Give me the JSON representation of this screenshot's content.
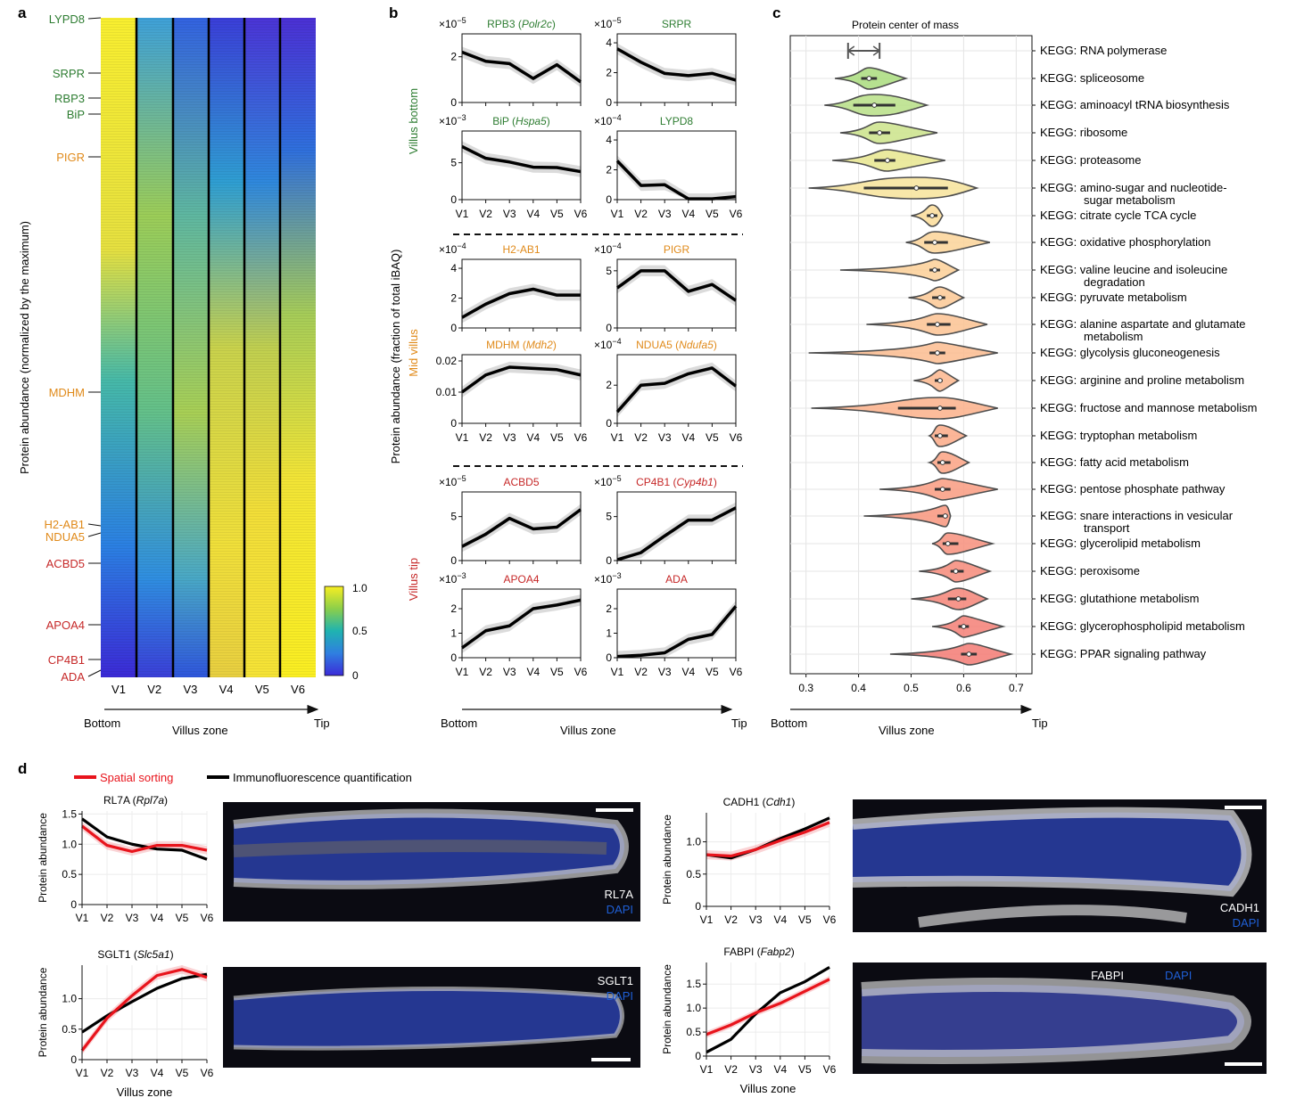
{
  "panel_labels": {
    "a": "a",
    "b": "b",
    "c": "c",
    "d": "d"
  },
  "colors": {
    "green": "#2e7d32",
    "orange": "#e08a1a",
    "red": "#c62828",
    "spatial_sorting": "#e8141c",
    "immunofluorescence": "#000000",
    "dapi_blue": "#1f5fd6"
  },
  "panel_a": {
    "ylabel": "Protein abundance (normalized by the maximum)",
    "columns": [
      "V1",
      "V2",
      "V3",
      "V4",
      "V5",
      "V6"
    ],
    "colorbar_ticks": [
      "1.0",
      "0.5",
      "0"
    ],
    "protein_labels": [
      {
        "name": "LYPD8",
        "color": "green"
      },
      {
        "name": "SRPR",
        "color": "green"
      },
      {
        "name": "RBP3",
        "color": "green"
      },
      {
        "name": "BiP",
        "color": "green"
      },
      {
        "name": "PIGR",
        "color": "orange"
      },
      {
        "name": "MDHM",
        "color": "orange"
      },
      {
        "name": "H2-AB1",
        "color": "orange"
      },
      {
        "name": "NDUA5",
        "color": "orange"
      },
      {
        "name": "ACBD5",
        "color": "red"
      },
      {
        "name": "APOA4",
        "color": "red"
      },
      {
        "name": "CP4B1",
        "color": "red"
      },
      {
        "name": "ADA",
        "color": "red"
      }
    ],
    "axis": {
      "left": "Bottom",
      "middle": "Villus zone",
      "right": "Tip"
    }
  },
  "panel_b": {
    "ylabel": "Protein abundance (fraction of total iBAQ)",
    "groups": [
      {
        "name": "Villus bottom",
        "color": "green"
      },
      {
        "name": "Mid villus",
        "color": "orange"
      },
      {
        "name": "Villus tip",
        "color": "red"
      }
    ],
    "xticks": [
      "V1",
      "V2",
      "V3",
      "V4",
      "V5",
      "V6"
    ],
    "axis": {
      "left": "Bottom",
      "middle": "Villus zone",
      "right": "Tip"
    }
  },
  "panel_c": {
    "title": "Protein center of mass",
    "xticks": [
      "0.3",
      "0.4",
      "0.5",
      "0.6",
      "0.7"
    ],
    "axis": {
      "left": "Bottom",
      "middle": "Villus zone",
      "right": "Tip"
    }
  },
  "panel_d": {
    "legend": [
      "Spatial sorting",
      "Immunofluorescence quantification"
    ],
    "xticks": [
      "V1",
      "V2",
      "V3",
      "V4",
      "V5",
      "V6"
    ],
    "ylabel": "Protein abundance",
    "xlabel": "Villus zone",
    "micrograph_labels": [
      {
        "protein": "RL7A",
        "stain": "DAPI"
      },
      {
        "protein": "CADH1",
        "stain": "DAPI"
      },
      {
        "protein": "SGLT1",
        "stain": "DAPI"
      },
      {
        "protein": "FABPI",
        "stain": "DAPI"
      }
    ]
  },
  "chart_data": [
    {
      "id": "b1",
      "type": "line",
      "title": "RPB3 (Polr2c)",
      "title_main": "RPB3 (",
      "title_italic": "Polr2c",
      "title_end": ")",
      "title_color": "green",
      "multiplier": "×10",
      "exponent": "−5",
      "x": [
        "V1",
        "V2",
        "V3",
        "V4",
        "V5",
        "V6"
      ],
      "y": [
        2.2,
        1.8,
        1.7,
        1.05,
        1.65,
        0.9
      ],
      "yticks": [
        0,
        2
      ],
      "ylim": [
        0,
        3
      ]
    },
    {
      "id": "b2",
      "type": "line",
      "title": "SRPR",
      "title_main": "SRPR",
      "title_italic": "",
      "title_end": "",
      "title_color": "green",
      "multiplier": "×10",
      "exponent": "−5",
      "x": [
        "V1",
        "V2",
        "V3",
        "V4",
        "V5",
        "V6"
      ],
      "y": [
        3.6,
        2.7,
        1.95,
        1.8,
        1.95,
        1.5
      ],
      "yticks": [
        0,
        2,
        4
      ],
      "ylim": [
        0,
        4.6
      ]
    },
    {
      "id": "b3",
      "type": "line",
      "title": "BiP (Hspa5)",
      "title_main": "BiP (",
      "title_italic": "Hspa5",
      "title_end": ")",
      "title_color": "green",
      "multiplier": "×10",
      "exponent": "−3",
      "x": [
        "V1",
        "V2",
        "V3",
        "V4",
        "V5",
        "V6"
      ],
      "y": [
        7.2,
        5.6,
        5.1,
        4.4,
        4.35,
        3.8
      ],
      "yticks": [
        0,
        5
      ],
      "ylim": [
        0,
        9.3
      ]
    },
    {
      "id": "b4",
      "type": "line",
      "title": "LYPD8",
      "title_main": "LYPD8",
      "title_italic": "",
      "title_end": "",
      "title_color": "green",
      "multiplier": "×10",
      "exponent": "−4",
      "x": [
        "V1",
        "V2",
        "V3",
        "V4",
        "V5",
        "V6"
      ],
      "y": [
        2.6,
        0.95,
        1.0,
        0.05,
        0.05,
        0.2
      ],
      "yticks": [
        0,
        2,
        4
      ],
      "ylim": [
        0,
        4.6
      ]
    },
    {
      "id": "b5",
      "type": "line",
      "title": "H2-AB1",
      "title_main": "H2-AB1",
      "title_italic": "",
      "title_end": "",
      "title_color": "orange",
      "multiplier": "×10",
      "exponent": "−4",
      "x": [
        "V1",
        "V2",
        "V3",
        "V4",
        "V5",
        "V6"
      ],
      "y": [
        0.7,
        1.6,
        2.3,
        2.6,
        2.2,
        2.2
      ],
      "yticks": [
        0,
        2,
        4
      ],
      "ylim": [
        0,
        4.6
      ]
    },
    {
      "id": "b6",
      "type": "line",
      "title": "PIGR",
      "title_main": "PIGR",
      "title_italic": "",
      "title_end": "",
      "title_color": "orange",
      "multiplier": "×10",
      "exponent": "−4",
      "x": [
        "V1",
        "V2",
        "V3",
        "V4",
        "V5",
        "V6"
      ],
      "y": [
        3.5,
        5.0,
        5.0,
        3.2,
        3.8,
        2.4
      ],
      "yticks": [
        0,
        5
      ],
      "ylim": [
        0,
        6.0
      ]
    },
    {
      "id": "b7",
      "type": "line",
      "title": "MDHM (Mdh2)",
      "title_main": "MDHM (",
      "title_italic": "Mdh2",
      "title_end": ")",
      "title_color": "orange",
      "multiplier": "",
      "exponent": "",
      "x": [
        "V1",
        "V2",
        "V3",
        "V4",
        "V5",
        "V6"
      ],
      "y": [
        0.01,
        0.0155,
        0.018,
        0.0176,
        0.0172,
        0.0155
      ],
      "yticks": [
        0,
        0.01,
        0.02
      ],
      "ytick_labels": [
        "0",
        "0.01",
        "0.02"
      ],
      "ylim": [
        0,
        0.022
      ]
    },
    {
      "id": "b8",
      "type": "line",
      "title": "NDUA5 (Ndufa5)",
      "title_main": "NDUA5 (",
      "title_italic": "Ndufa5",
      "title_end": ")",
      "title_color": "orange",
      "multiplier": "×10",
      "exponent": "−4",
      "x": [
        "V1",
        "V2",
        "V3",
        "V4",
        "V5",
        "V6"
      ],
      "y": [
        0.6,
        2.0,
        2.1,
        2.6,
        2.9,
        1.95
      ],
      "yticks": [
        0,
        2
      ],
      "ylim": [
        0,
        3.6
      ]
    },
    {
      "id": "b9",
      "type": "line",
      "title": "ACBD5",
      "title_main": "ACBD5",
      "title_italic": "",
      "title_end": "",
      "title_color": "red",
      "multiplier": "×10",
      "exponent": "−5",
      "x": [
        "V1",
        "V2",
        "V3",
        "V4",
        "V5",
        "V6"
      ],
      "y": [
        1.6,
        3.0,
        4.8,
        3.6,
        3.8,
        5.8
      ],
      "yticks": [
        0,
        5
      ],
      "ylim": [
        0,
        7.8
      ]
    },
    {
      "id": "b10",
      "type": "line",
      "title": "CP4B1 (Cyp4b1)",
      "title_main": "CP4B1 (",
      "title_italic": "Cyp4b1",
      "title_end": ")",
      "title_color": "red",
      "multiplier": "×10",
      "exponent": "−5",
      "x": [
        "V1",
        "V2",
        "V3",
        "V4",
        "V5",
        "V6"
      ],
      "y": [
        0.1,
        0.9,
        2.8,
        4.6,
        4.6,
        6.0
      ],
      "yticks": [
        0,
        5
      ],
      "ylim": [
        0,
        7.8
      ]
    },
    {
      "id": "b11",
      "type": "line",
      "title": "APOA4",
      "title_main": "APOA4",
      "title_italic": "",
      "title_end": "",
      "title_color": "red",
      "multiplier": "×10",
      "exponent": "−3",
      "x": [
        "V1",
        "V2",
        "V3",
        "V4",
        "V5",
        "V6"
      ],
      "y": [
        0.4,
        1.1,
        1.3,
        2.0,
        2.15,
        2.35
      ],
      "yticks": [
        0,
        1,
        2
      ],
      "ylim": [
        0,
        2.8
      ]
    },
    {
      "id": "b12",
      "type": "line",
      "title": "ADA",
      "title_main": "ADA",
      "title_italic": "",
      "title_end": "",
      "title_color": "red",
      "multiplier": "×10",
      "exponent": "−3",
      "x": [
        "V1",
        "V2",
        "V3",
        "V4",
        "V5",
        "V6"
      ],
      "y": [
        0.05,
        0.1,
        0.2,
        0.75,
        0.95,
        2.1
      ],
      "yticks": [
        0,
        1,
        2
      ],
      "ylim": [
        0,
        2.8
      ]
    },
    {
      "id": "c",
      "type": "violin",
      "title": "Protein center of mass",
      "xlim": [
        0.27,
        0.73
      ],
      "categories": [
        {
          "label": "KEGG: RNA polymerase",
          "label2": "",
          "min": 0.38,
          "q1": 0.39,
          "median": 0.405,
          "q3": 0.43,
          "max": 0.44,
          "color": "#ffffff"
        },
        {
          "label": "KEGG: spliceosome",
          "label2": "",
          "min": 0.355,
          "q1": 0.405,
          "median": 0.42,
          "q3": 0.435,
          "max": 0.49,
          "color": "#a9dc7c"
        },
        {
          "label": "KEGG: aminoacyl tRNA biosynthesis",
          "label2": "",
          "min": 0.335,
          "q1": 0.39,
          "median": 0.43,
          "q3": 0.47,
          "max": 0.53,
          "color": "#b7df86"
        },
        {
          "label": "KEGG: ribosome",
          "label2": "",
          "min": 0.365,
          "q1": 0.42,
          "median": 0.44,
          "q3": 0.46,
          "max": 0.55,
          "color": "#cbe38a"
        },
        {
          "label": "KEGG: proteasome",
          "label2": "",
          "min": 0.35,
          "q1": 0.43,
          "median": 0.455,
          "q3": 0.47,
          "max": 0.565,
          "color": "#e8e68e"
        },
        {
          "label": "KEGG: amino-sugar and nucleotide-",
          "label2": "sugar metabolism",
          "min": 0.305,
          "q1": 0.41,
          "median": 0.51,
          "q3": 0.57,
          "max": 0.625,
          "color": "#f7e39a"
        },
        {
          "label": "KEGG: citrate cycle TCA cycle",
          "label2": "",
          "min": 0.5,
          "q1": 0.53,
          "median": 0.54,
          "q3": 0.55,
          "max": 0.56,
          "color": "#fbdc98"
        },
        {
          "label": "KEGG: oxidative phosphorylation",
          "label2": "",
          "min": 0.49,
          "q1": 0.525,
          "median": 0.545,
          "q3": 0.57,
          "max": 0.65,
          "color": "#fbd498"
        },
        {
          "label": "KEGG: valine leucine and isoleucine",
          "label2": "degradation",
          "min": 0.365,
          "q1": 0.535,
          "median": 0.545,
          "q3": 0.555,
          "max": 0.59,
          "color": "#fbcf96"
        },
        {
          "label": "KEGG: pyruvate metabolism",
          "label2": "",
          "min": 0.495,
          "q1": 0.54,
          "median": 0.555,
          "q3": 0.565,
          "max": 0.6,
          "color": "#fbc894"
        },
        {
          "label": "KEGG: alanine aspartate and glutamate",
          "label2": "metabolism",
          "min": 0.415,
          "q1": 0.53,
          "median": 0.55,
          "q3": 0.575,
          "max": 0.645,
          "color": "#fbc292"
        },
        {
          "label": "KEGG: glycolysis gluconeogenesis",
          "label2": "",
          "min": 0.305,
          "q1": 0.535,
          "median": 0.55,
          "q3": 0.565,
          "max": 0.665,
          "color": "#fbbc8f"
        },
        {
          "label": "KEGG: arginine and proline metabolism",
          "label2": "",
          "min": 0.505,
          "q1": 0.545,
          "median": 0.555,
          "q3": 0.56,
          "max": 0.59,
          "color": "#fbb68d"
        },
        {
          "label": "KEGG: fructose and mannose metabolism",
          "label2": "",
          "min": 0.31,
          "q1": 0.475,
          "median": 0.555,
          "q3": 0.585,
          "max": 0.665,
          "color": "#fbb08a"
        },
        {
          "label": "KEGG: tryptophan metabolism",
          "label2": "",
          "min": 0.535,
          "q1": 0.545,
          "median": 0.555,
          "q3": 0.57,
          "max": 0.605,
          "color": "#faa986"
        },
        {
          "label": "KEGG: fatty acid metabolism",
          "label2": "",
          "min": 0.535,
          "q1": 0.55,
          "median": 0.56,
          "q3": 0.575,
          "max": 0.61,
          "color": "#faa283"
        },
        {
          "label": "KEGG: pentose phosphate pathway",
          "label2": "",
          "min": 0.44,
          "q1": 0.545,
          "median": 0.56,
          "q3": 0.575,
          "max": 0.665,
          "color": "#f99b80"
        },
        {
          "label": "KEGG: snare interactions in vesicular",
          "label2": "transport",
          "min": 0.41,
          "q1": 0.55,
          "median": 0.565,
          "q3": 0.57,
          "max": 0.575,
          "color": "#f8957d"
        },
        {
          "label": "KEGG: glycerolipid metabolism",
          "label2": "",
          "min": 0.54,
          "q1": 0.56,
          "median": 0.57,
          "q3": 0.59,
          "max": 0.655,
          "color": "#f78f7b"
        },
        {
          "label": "KEGG: peroxisome",
          "label2": "",
          "min": 0.515,
          "q1": 0.575,
          "median": 0.585,
          "q3": 0.6,
          "max": 0.65,
          "color": "#f68a79"
        },
        {
          "label": "KEGG: glutathione metabolism",
          "label2": "",
          "min": 0.5,
          "q1": 0.57,
          "median": 0.59,
          "q3": 0.605,
          "max": 0.645,
          "color": "#f58477"
        },
        {
          "label": "KEGG: glycerophospholipid metabolism",
          "label2": "",
          "min": 0.54,
          "q1": 0.59,
          "median": 0.6,
          "q3": 0.61,
          "max": 0.675,
          "color": "#f47f75"
        },
        {
          "label": "KEGG: PPAR signaling pathway",
          "label2": "",
          "min": 0.46,
          "q1": 0.595,
          "median": 0.61,
          "q3": 0.625,
          "max": 0.69,
          "color": "#f37a73"
        }
      ]
    },
    {
      "id": "d1",
      "type": "line",
      "title": "RL7A (Rpl7a)",
      "title_main": "RL7A (",
      "title_italic": "Rpl7a",
      "title_end": ")",
      "x": [
        "V1",
        "V2",
        "V3",
        "V4",
        "V5",
        "V6"
      ],
      "ylim": [
        0,
        1.55
      ],
      "yticks": [
        0,
        0.5,
        1.0,
        1.5
      ],
      "ytick_labels": [
        "0",
        "0.5",
        "1.0",
        "1.5"
      ],
      "series": [
        {
          "name": "Spatial sorting",
          "values": [
            1.3,
            0.98,
            0.88,
            0.98,
            0.98,
            0.9
          ]
        },
        {
          "name": "Immunofluorescence quantification",
          "values": [
            1.42,
            1.12,
            1.0,
            0.92,
            0.9,
            0.75
          ]
        }
      ]
    },
    {
      "id": "d2",
      "type": "line",
      "title": "CADH1 (Cdh1)",
      "title_main": "CADH1 (",
      "title_italic": "Cdh1",
      "title_end": ")",
      "x": [
        "V1",
        "V2",
        "V3",
        "V4",
        "V5",
        "V6"
      ],
      "ylim": [
        0,
        1.45
      ],
      "yticks": [
        0,
        0.5,
        1.0
      ],
      "ytick_labels": [
        "0",
        "0.5",
        "1.0"
      ],
      "series": [
        {
          "name": "Spatial sorting",
          "values": [
            0.8,
            0.78,
            0.88,
            1.02,
            1.15,
            1.3
          ]
        },
        {
          "name": "Immunofluorescence quantification",
          "values": [
            0.8,
            0.75,
            0.88,
            1.05,
            1.2,
            1.37
          ]
        }
      ]
    },
    {
      "id": "d3",
      "type": "line",
      "title": "SGLT1 (Slc5a1)",
      "title_main": "SGLT1 (",
      "title_italic": "Slc5a1",
      "title_end": ")",
      "x": [
        "V1",
        "V2",
        "V3",
        "V4",
        "V5",
        "V6"
      ],
      "ylim": [
        0,
        1.55
      ],
      "yticks": [
        0,
        0.5,
        1.0
      ],
      "ytick_labels": [
        "0",
        "0.5",
        "1.0"
      ],
      "series": [
        {
          "name": "Spatial sorting",
          "values": [
            0.15,
            0.68,
            1.05,
            1.38,
            1.48,
            1.35
          ]
        },
        {
          "name": "Immunofluorescence quantification",
          "values": [
            0.45,
            0.72,
            0.95,
            1.17,
            1.33,
            1.4
          ]
        }
      ]
    },
    {
      "id": "d4",
      "type": "line",
      "title": "FABPI (Fabp2)",
      "title_main": "FABPI (",
      "title_italic": "Fabp2",
      "title_end": ")",
      "x": [
        "V1",
        "V2",
        "V3",
        "V4",
        "V5",
        "V6"
      ],
      "ylim": [
        0,
        1.95
      ],
      "yticks": [
        0,
        0.5,
        1.0,
        1.5
      ],
      "ytick_labels": [
        "0",
        "0.5",
        "1.0",
        "1.5"
      ],
      "series": [
        {
          "name": "Spatial sorting",
          "values": [
            0.45,
            0.65,
            0.9,
            1.1,
            1.35,
            1.6
          ]
        },
        {
          "name": "Immunofluorescence quantification",
          "values": [
            0.08,
            0.35,
            0.88,
            1.32,
            1.55,
            1.85
          ]
        }
      ]
    }
  ]
}
